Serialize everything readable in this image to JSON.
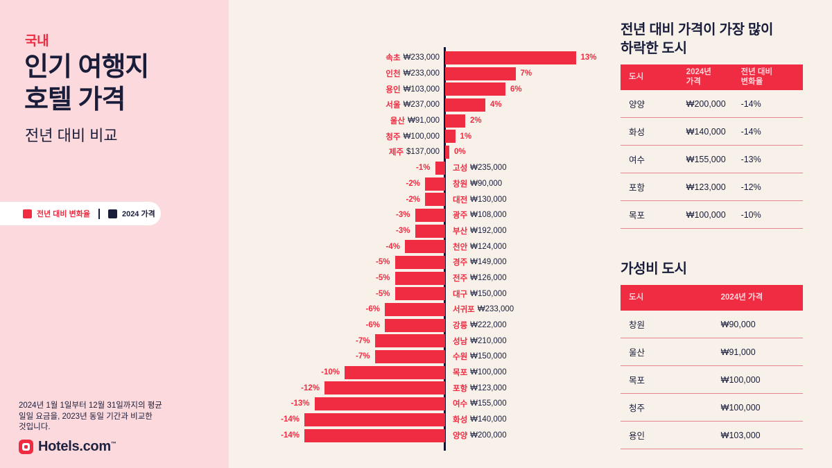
{
  "header": {
    "kicker": "국내",
    "title_line1": "인기 여행지",
    "title_line2": "호텔 가격",
    "subtitle": "전년 대비 비교"
  },
  "legend": {
    "change_label": "전년 대비 변화율",
    "price_label": "2024 가격"
  },
  "footnote": {
    "text": "2024년 1월 1일부터 12월 31일까지의 평균\n일일 요금을, 2023년 동일 기간과 비교한\n것입니다."
  },
  "logo": {
    "text": "Hotels.com",
    "tm": "™"
  },
  "colors": {
    "brand_red": "#EF2C41",
    "navy": "#191D3A",
    "panel_pink": "#FBD9DC",
    "background_cream": "#F7F1EA",
    "axis": "#10142C",
    "row_separator": "#E6848F",
    "table_header_text": "#FFD6DB"
  },
  "chart_data": [
    {
      "type": "bar",
      "title": "국내 인기 여행지 호텔 가격 — 전년 대비 변화율",
      "orientation": "horizontal-diverging",
      "unit": "%",
      "xlim": [
        -14,
        13
      ],
      "points": [
        {
          "city": "속초",
          "price": "₩233,000",
          "pct": 13,
          "pct_label": "13%"
        },
        {
          "city": "인천",
          "price": "₩233,000",
          "pct": 7,
          "pct_label": "7%"
        },
        {
          "city": "용인",
          "price": "₩103,000",
          "pct": 6,
          "pct_label": "6%"
        },
        {
          "city": "서울",
          "price": "₩237,000",
          "pct": 4,
          "pct_label": "4%"
        },
        {
          "city": "울산",
          "price": "₩91,000",
          "pct": 2,
          "pct_label": "2%"
        },
        {
          "city": "청주",
          "price": "₩100,000",
          "pct": 1,
          "pct_label": "1%"
        },
        {
          "city": "제주",
          "price": "$137,000",
          "pct": 0,
          "pct_label": "0%"
        },
        {
          "city": "고성",
          "price": "₩235,000",
          "pct": -1,
          "pct_label": "-1%"
        },
        {
          "city": "창원",
          "price": "₩90,000",
          "pct": -2,
          "pct_label": "-2%"
        },
        {
          "city": "대전",
          "price": "₩130,000",
          "pct": -2,
          "pct_label": "-2%"
        },
        {
          "city": "광주",
          "price": "₩108,000",
          "pct": -3,
          "pct_label": "-3%"
        },
        {
          "city": "부산",
          "price": "₩192,000",
          "pct": -3,
          "pct_label": "-3%"
        },
        {
          "city": "천안",
          "price": "₩124,000",
          "pct": -4,
          "pct_label": "-4%"
        },
        {
          "city": "경주",
          "price": "₩149,000",
          "pct": -5,
          "pct_label": "-5%"
        },
        {
          "city": "전주",
          "price": "₩126,000",
          "pct": -5,
          "pct_label": "-5%"
        },
        {
          "city": "대구",
          "price": "₩150,000",
          "pct": -5,
          "pct_label": "-5%"
        },
        {
          "city": "서귀포",
          "price": "₩233,000",
          "pct": -6,
          "pct_label": "-6%"
        },
        {
          "city": "강릉",
          "price": "₩222,000",
          "pct": -6,
          "pct_label": "-6%"
        },
        {
          "city": "성남",
          "price": "₩210,000",
          "pct": -7,
          "pct_label": "-7%"
        },
        {
          "city": "수원",
          "price": "₩150,000",
          "pct": -7,
          "pct_label": "-7%"
        },
        {
          "city": "목포",
          "price": "₩100,000",
          "pct": -10,
          "pct_label": "-10%"
        },
        {
          "city": "포항",
          "price": "₩123,000",
          "pct": -12,
          "pct_label": "-12%"
        },
        {
          "city": "여수",
          "price": "₩155,000",
          "pct": -13,
          "pct_label": "-13%"
        },
        {
          "city": "화성",
          "price": "₩140,000",
          "pct": -14,
          "pct_label": "-14%"
        },
        {
          "city": "양양",
          "price": "₩200,000",
          "pct": -14,
          "pct_label": "-14%"
        }
      ]
    },
    {
      "type": "table",
      "title": "전년 대비 가격이 가장 많이\n하락한 도시",
      "columns": [
        "도시",
        "2024년\n가격",
        "전년 대비\n변화율"
      ],
      "rows": [
        [
          "양양",
          "₩200,000",
          "-14%"
        ],
        [
          "화성",
          "₩140,000",
          "-14%"
        ],
        [
          "여수",
          "₩155,000",
          "-13%"
        ],
        [
          "포항",
          "₩123,000",
          "-12%"
        ],
        [
          "목포",
          "₩100,000",
          "-10%"
        ]
      ]
    },
    {
      "type": "table",
      "title": "가성비 도시",
      "columns": [
        "도시",
        "2024년 가격"
      ],
      "rows": [
        [
          "창원",
          "₩90,000"
        ],
        [
          "울산",
          "₩91,000"
        ],
        [
          "목포",
          "₩100,000"
        ],
        [
          "청주",
          "₩100,000"
        ],
        [
          "용인",
          "₩103,000"
        ]
      ]
    }
  ]
}
